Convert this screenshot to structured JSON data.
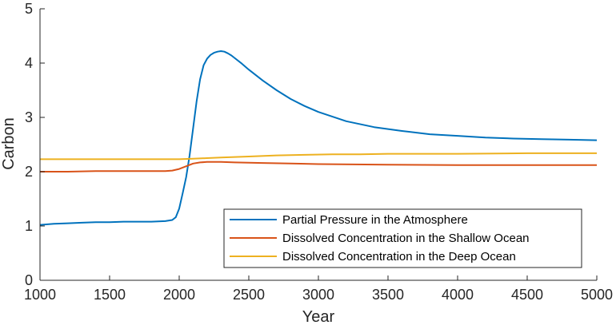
{
  "chart_data": {
    "type": "line",
    "title": "",
    "xlabel": "Year",
    "ylabel": "Carbon",
    "xlim": [
      1000,
      5000
    ],
    "ylim": [
      0,
      5
    ],
    "xticks": [
      1000,
      1500,
      2000,
      2500,
      3000,
      3500,
      4000,
      4500,
      5000
    ],
    "yticks": [
      0,
      1,
      2,
      3,
      4,
      5
    ],
    "grid": false,
    "legend_position": "bottom-right",
    "series": [
      {
        "name": "Partial Pressure in the Atmosphere",
        "color": "#0072BD",
        "x": [
          1000,
          1100,
          1200,
          1300,
          1400,
          1500,
          1600,
          1700,
          1800,
          1900,
          1950,
          1975,
          2000,
          2025,
          2050,
          2075,
          2100,
          2125,
          2150,
          2175,
          2200,
          2225,
          2250,
          2275,
          2300,
          2325,
          2350,
          2375,
          2400,
          2450,
          2500,
          2600,
          2700,
          2800,
          2900,
          3000,
          3200,
          3400,
          3600,
          3800,
          4000,
          4200,
          4400,
          4600,
          4800,
          5000
        ],
        "y": [
          1.02,
          1.04,
          1.05,
          1.06,
          1.07,
          1.07,
          1.08,
          1.08,
          1.08,
          1.09,
          1.11,
          1.16,
          1.32,
          1.6,
          1.9,
          2.3,
          2.8,
          3.3,
          3.7,
          3.96,
          4.08,
          4.15,
          4.19,
          4.21,
          4.22,
          4.21,
          4.18,
          4.14,
          4.09,
          3.99,
          3.88,
          3.68,
          3.5,
          3.34,
          3.21,
          3.1,
          2.93,
          2.82,
          2.75,
          2.69,
          2.66,
          2.63,
          2.61,
          2.6,
          2.59,
          2.58
        ]
      },
      {
        "name": "Dissolved Concentration in the Shallow Ocean",
        "color": "#D95319",
        "x": [
          1000,
          1200,
          1400,
          1600,
          1800,
          1900,
          1950,
          2000,
          2050,
          2100,
          2150,
          2200,
          2300,
          2400,
          2600,
          2800,
          3000,
          3500,
          4000,
          4500,
          5000
        ],
        "y": [
          2.0,
          2.0,
          2.01,
          2.01,
          2.01,
          2.01,
          2.02,
          2.05,
          2.1,
          2.15,
          2.17,
          2.18,
          2.18,
          2.17,
          2.16,
          2.15,
          2.14,
          2.13,
          2.12,
          2.12,
          2.12
        ]
      },
      {
        "name": "Dissolved Concentration in the Deep Ocean",
        "color": "#EDB120",
        "x": [
          1000,
          1500,
          2000,
          2100,
          2200,
          2300,
          2400,
          2500,
          2700,
          2900,
          3100,
          3300,
          3500,
          3700,
          4000,
          4500,
          5000
        ],
        "y": [
          2.23,
          2.23,
          2.23,
          2.24,
          2.25,
          2.26,
          2.27,
          2.28,
          2.3,
          2.31,
          2.32,
          2.32,
          2.33,
          2.33,
          2.33,
          2.34,
          2.34
        ]
      }
    ]
  }
}
